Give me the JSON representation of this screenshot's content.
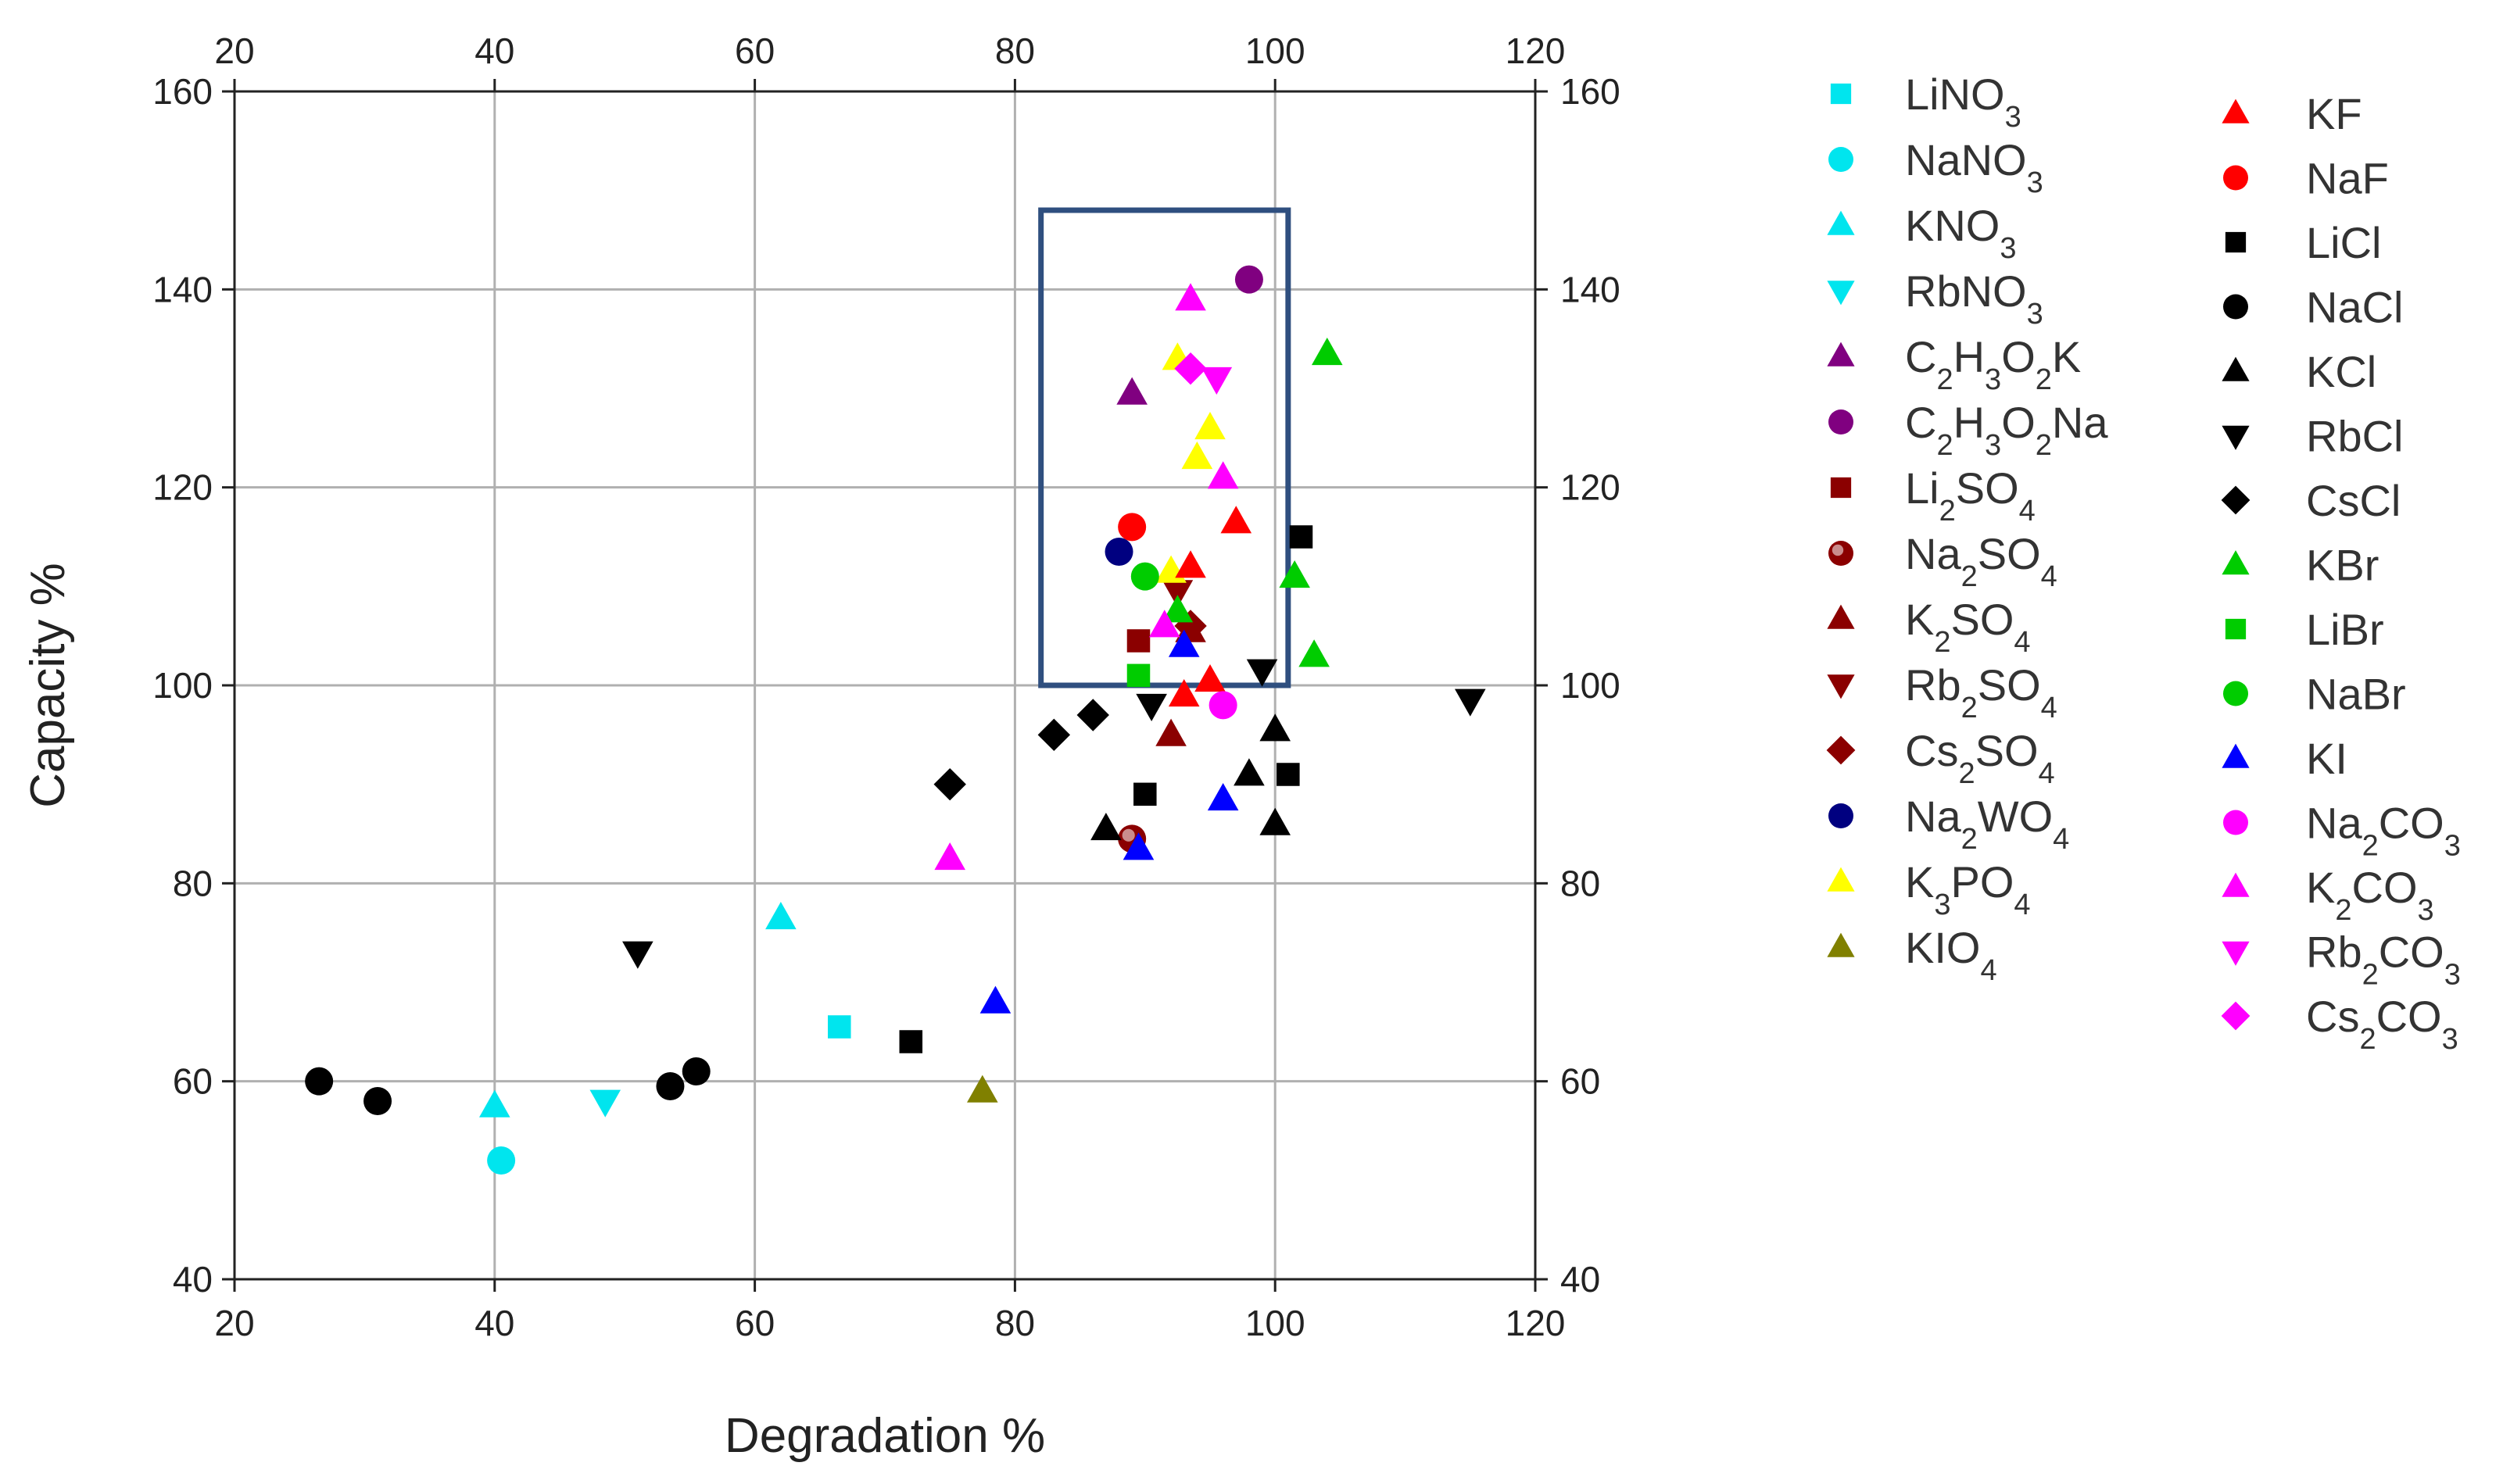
{
  "chart_data": {
    "type": "scatter",
    "title": "",
    "xlabel": "Degradation   %",
    "ylabel": "Capacity   %",
    "xlim": [
      20,
      120
    ],
    "ylim": [
      40,
      160
    ],
    "xticks": [
      "20",
      "40",
      "60",
      "80",
      "100",
      "120"
    ],
    "yticks": [
      "40",
      "60",
      "80",
      "100",
      "120",
      "140",
      "160"
    ],
    "grid": true,
    "highlight_box": {
      "x": [
        82,
        101
      ],
      "y": [
        100,
        148
      ]
    },
    "series": [
      {
        "name": "LiNO3",
        "label": [
          "LiNO",
          "3",
          ""
        ],
        "color": "#00E5EE",
        "marker": "square",
        "points": [
          [
            66.5,
            65.5
          ]
        ]
      },
      {
        "name": "NaNO3",
        "label": [
          "NaNO",
          "3",
          ""
        ],
        "color": "#00E5EE",
        "marker": "circle",
        "points": [
          [
            40.5,
            52
          ]
        ]
      },
      {
        "name": "KNO3",
        "label": [
          "KNO",
          "3",
          ""
        ],
        "color": "#00E5EE",
        "marker": "triangle-up",
        "points": [
          [
            40,
            57.5
          ],
          [
            62,
            76.5
          ]
        ]
      },
      {
        "name": "RbNO3",
        "label": [
          "RbNO",
          "3",
          ""
        ],
        "color": "#00E5EE",
        "marker": "triangle-down",
        "points": [
          [
            48.5,
            58
          ]
        ]
      },
      {
        "name": "C2H3O2K",
        "label": [
          "C",
          "2",
          "H",
          "3",
          "O",
          "2",
          "K"
        ],
        "color": "#800080",
        "marker": "triangle-up",
        "points": [
          [
            89,
            129.5
          ]
        ]
      },
      {
        "name": "C2H3O2Na",
        "label": [
          "C",
          "2",
          "H",
          "3",
          "O",
          "2",
          "Na"
        ],
        "color": "#800080",
        "marker": "circle",
        "points": [
          [
            98,
            141
          ]
        ]
      },
      {
        "name": "Li2SO4",
        "label": [
          "Li",
          "2",
          "SO",
          "4",
          ""
        ],
        "color": "#8B0000",
        "marker": "square",
        "points": [
          [
            89.5,
            104.5
          ]
        ]
      },
      {
        "name": "Na2SO4",
        "label": [
          "Na",
          "2",
          "SO",
          "4",
          ""
        ],
        "color": "#8B0000",
        "marker": "circle-half",
        "points": [
          [
            89,
            84.5
          ]
        ]
      },
      {
        "name": "K2SO4",
        "label": [
          "K",
          "2",
          "SO",
          "4",
          ""
        ],
        "color": "#8B0000",
        "marker": "triangle-up",
        "points": [
          [
            92,
            95
          ],
          [
            93.5,
            105.5
          ]
        ]
      },
      {
        "name": "Rb2SO4",
        "label": [
          "Rb",
          "2",
          "SO",
          "4",
          ""
        ],
        "color": "#8B0000",
        "marker": "triangle-down",
        "points": [
          [
            92.5,
            109.5
          ]
        ]
      },
      {
        "name": "Cs2SO4",
        "label": [
          "Cs",
          "2",
          "SO",
          "4",
          ""
        ],
        "color": "#8B0000",
        "marker": "diamond",
        "points": [
          [
            93.5,
            106
          ]
        ]
      },
      {
        "name": "Na2WO4",
        "label": [
          "Na",
          "2",
          "WO",
          "4",
          ""
        ],
        "color": "#000080",
        "marker": "circle",
        "points": [
          [
            88,
            113.5
          ]
        ]
      },
      {
        "name": "K3PO4",
        "label": [
          "K",
          "3",
          "PO",
          "4",
          ""
        ],
        "color": "#FFFF00",
        "marker": "triangle-up",
        "points": [
          [
            92.5,
            133
          ],
          [
            94,
            123
          ],
          [
            95,
            126
          ],
          [
            92,
            111.5
          ]
        ]
      },
      {
        "name": "KIO4",
        "label": [
          "KIO",
          "4",
          ""
        ],
        "color": "#808000",
        "marker": "triangle-up",
        "points": [
          [
            77.5,
            59
          ]
        ]
      },
      {
        "name": "KF",
        "label": [
          "KF"
        ],
        "color": "#FF0000",
        "marker": "triangle-up",
        "points": [
          [
            97,
            116.5
          ],
          [
            93.5,
            112
          ],
          [
            93,
            99
          ],
          [
            95,
            100.5
          ]
        ]
      },
      {
        "name": "NaF",
        "label": [
          "NaF"
        ],
        "color": "#FF0000",
        "marker": "circle",
        "points": [
          [
            89,
            116
          ]
        ]
      },
      {
        "name": "LiCl",
        "label": [
          "LiCl"
        ],
        "color": "#000000",
        "marker": "square",
        "points": [
          [
            102,
            115
          ],
          [
            101,
            91
          ],
          [
            90,
            89
          ],
          [
            72,
            64
          ]
        ]
      },
      {
        "name": "NaCl",
        "label": [
          "NaCl"
        ],
        "color": "#000000",
        "marker": "circle",
        "points": [
          [
            26.5,
            60
          ],
          [
            31,
            58
          ],
          [
            53.5,
            59.5
          ],
          [
            55.5,
            61
          ]
        ]
      },
      {
        "name": "KCl",
        "label": [
          "KCl"
        ],
        "color": "#000000",
        "marker": "triangle-up",
        "points": [
          [
            87,
            85.5
          ],
          [
            98,
            91
          ],
          [
            100,
            95.5
          ],
          [
            100,
            86
          ]
        ]
      },
      {
        "name": "RbCl",
        "label": [
          "RbCl"
        ],
        "color": "#000000",
        "marker": "triangle-down",
        "points": [
          [
            51,
            73
          ],
          [
            90.5,
            98
          ],
          [
            99,
            101.5
          ],
          [
            115,
            98.5
          ]
        ]
      },
      {
        "name": "CsCl",
        "label": [
          "CsCl"
        ],
        "color": "#000000",
        "marker": "diamond",
        "points": [
          [
            75,
            90
          ],
          [
            83,
            95
          ],
          [
            86,
            97
          ]
        ]
      },
      {
        "name": "KBr",
        "label": [
          "KBr"
        ],
        "color": "#00CC00",
        "marker": "triangle-up",
        "points": [
          [
            104,
            133.5
          ],
          [
            101.5,
            111
          ],
          [
            103,
            103
          ],
          [
            92.5,
            107.5
          ]
        ]
      },
      {
        "name": "LiBr",
        "label": [
          "LiBr"
        ],
        "color": "#00CC00",
        "marker": "square",
        "points": [
          [
            89.5,
            101
          ]
        ]
      },
      {
        "name": "NaBr",
        "label": [
          "NaBr"
        ],
        "color": "#00CC00",
        "marker": "circle",
        "points": [
          [
            90,
            111
          ]
        ]
      },
      {
        "name": "KI",
        "label": [
          "KI"
        ],
        "color": "#0000FF",
        "marker": "triangle-up",
        "points": [
          [
            78.5,
            68
          ],
          [
            89.5,
            83.5
          ],
          [
            96,
            88.5
          ],
          [
            93,
            104
          ]
        ]
      },
      {
        "name": "Na2CO3",
        "label": [
          "Na",
          "2",
          "CO",
          "3",
          ""
        ],
        "color": "#FF00FF",
        "marker": "circle",
        "points": [
          [
            96,
            98
          ]
        ]
      },
      {
        "name": "K2CO3",
        "label": [
          "K",
          "2",
          "CO",
          "3",
          ""
        ],
        "color": "#FF00FF",
        "marker": "triangle-up",
        "points": [
          [
            75,
            82.5
          ],
          [
            93.5,
            139
          ],
          [
            96,
            121
          ],
          [
            91.5,
            106
          ]
        ]
      },
      {
        "name": "Rb2CO3",
        "label": [
          "Rb",
          "2",
          "CO",
          "3",
          ""
        ],
        "color": "#FF00FF",
        "marker": "triangle-down",
        "points": [
          [
            95.5,
            131
          ]
        ]
      },
      {
        "name": "Cs2CO3",
        "label": [
          "Cs",
          "2",
          "CO",
          "3",
          ""
        ],
        "color": "#FF00FF",
        "marker": "diamond",
        "points": [
          [
            93.5,
            132
          ]
        ]
      }
    ]
  }
}
